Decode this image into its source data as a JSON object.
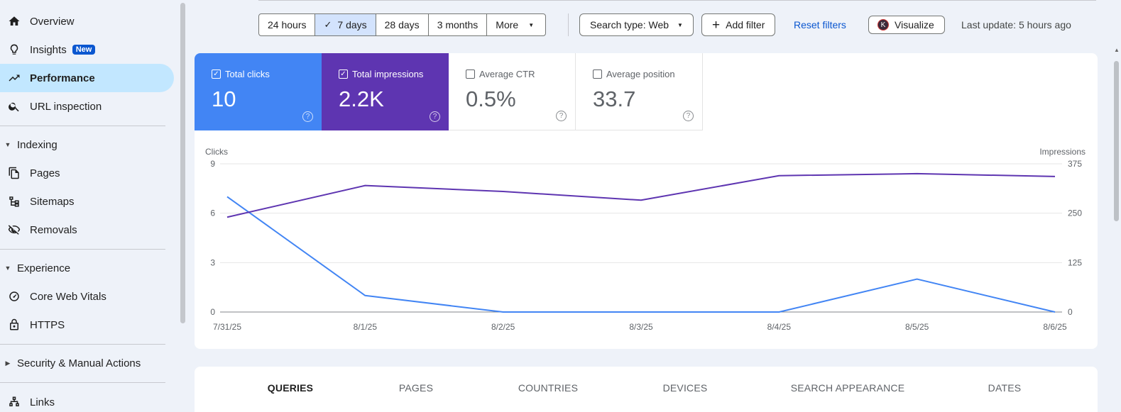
{
  "sidebar": {
    "items": [
      {
        "label": "Overview",
        "icon": "home-icon"
      },
      {
        "label": "Insights",
        "badge": "New",
        "icon": "lightbulb-icon"
      },
      {
        "label": "Performance",
        "icon": "trending-up-icon",
        "active": true
      },
      {
        "label": "URL inspection",
        "icon": "search-icon"
      }
    ],
    "sections": [
      {
        "title": "Indexing",
        "items": [
          {
            "label": "Pages",
            "icon": "pages-icon"
          },
          {
            "label": "Sitemaps",
            "icon": "sitemap-icon"
          },
          {
            "label": "Removals",
            "icon": "eye-off-icon"
          }
        ]
      },
      {
        "title": "Experience",
        "items": [
          {
            "label": "Core Web Vitals",
            "icon": "gauge-icon"
          },
          {
            "label": "HTTPS",
            "icon": "lock-icon"
          }
        ]
      },
      {
        "title": "Security & Manual Actions",
        "items": []
      }
    ],
    "links": {
      "label": "Links",
      "icon": "links-icon"
    }
  },
  "toolbar": {
    "ranges": [
      "24 hours",
      "7 days",
      "28 days",
      "3 months",
      "More"
    ],
    "selected_range": "7 days",
    "search_type": "Search type: Web",
    "add_filter": "Add filter",
    "reset_filters": "Reset filters",
    "visualize": "Visualize",
    "visualize_avatar": "K",
    "last_update": "Last update: 5 hours ago"
  },
  "metrics": {
    "clicks": {
      "label": "Total clicks",
      "value": "10",
      "checked": true,
      "color": "#4285f4"
    },
    "impressions": {
      "label": "Total impressions",
      "value": "2.2K",
      "checked": true,
      "color": "#5e35b1"
    },
    "ctr": {
      "label": "Average CTR",
      "value": "0.5%",
      "checked": false
    },
    "position": {
      "label": "Average position",
      "value": "33.7",
      "checked": false
    }
  },
  "chart_data": {
    "type": "line",
    "x": [
      "7/31/25",
      "8/1/25",
      "8/2/25",
      "8/3/25",
      "8/4/25",
      "8/5/25",
      "8/6/25"
    ],
    "series": [
      {
        "name": "Clicks",
        "axis": "left",
        "color": "#4285f4",
        "values": [
          7,
          1,
          0,
          0,
          0,
          2,
          0
        ]
      },
      {
        "name": "Impressions",
        "axis": "right",
        "color": "#5e35b1",
        "values": [
          240,
          320,
          305,
          283,
          345,
          350,
          343
        ]
      }
    ],
    "ylabel_left": "Clicks",
    "ylabel_right": "Impressions",
    "yticks_left": [
      0,
      3,
      6,
      9
    ],
    "yticks_right": [
      0,
      125,
      250,
      375
    ],
    "ylim_left": [
      0,
      9
    ],
    "ylim_right": [
      0,
      375
    ],
    "grid": true
  },
  "tabs": [
    "QUERIES",
    "PAGES",
    "COUNTRIES",
    "DEVICES",
    "SEARCH APPEARANCE",
    "DATES"
  ],
  "active_tab": "QUERIES"
}
